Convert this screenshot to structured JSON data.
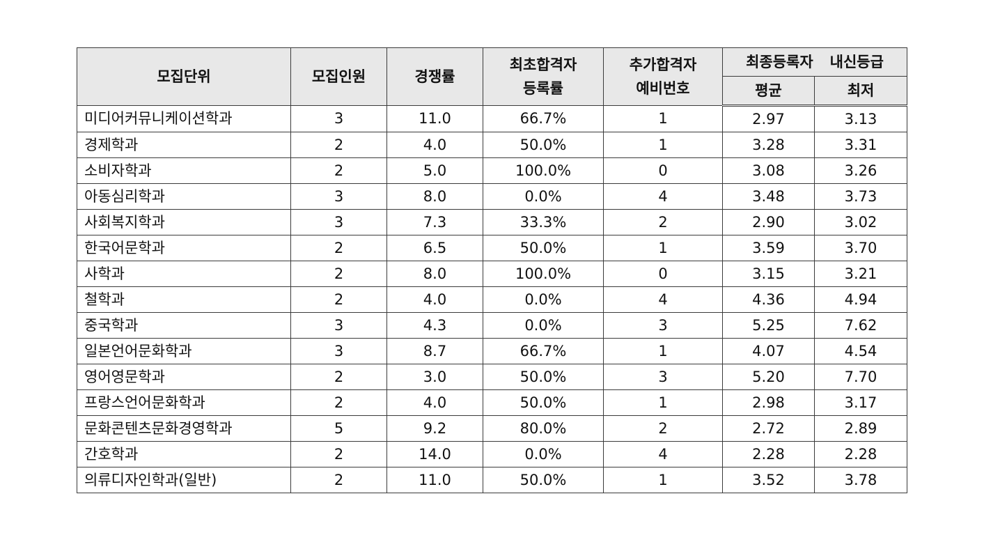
{
  "headers": {
    "unit": "모집단위",
    "quota": "모집인원",
    "competition": "경쟁률",
    "first_reg_line1": "최초합격자",
    "first_reg_line2": "등록률",
    "waitlist_line1": "추가합격자",
    "waitlist_line2": "예비번호",
    "grade_group_part1": "최종등록자",
    "grade_group_part2": "내신등급",
    "grade_avg": "평균",
    "grade_min": "최저"
  },
  "rows": [
    {
      "unit": "미디어커뮤니케이션학과",
      "quota": "3",
      "competition": "11.0",
      "first_reg": "66.7%",
      "waitlist": "1",
      "avg": "2.97",
      "min": "3.13"
    },
    {
      "unit": "경제학과",
      "quota": "2",
      "competition": "4.0",
      "first_reg": "50.0%",
      "waitlist": "1",
      "avg": "3.28",
      "min": "3.31"
    },
    {
      "unit": "소비자학과",
      "quota": "2",
      "competition": "5.0",
      "first_reg": "100.0%",
      "waitlist": "0",
      "avg": "3.08",
      "min": "3.26"
    },
    {
      "unit": "아동심리학과",
      "quota": "3",
      "competition": "8.0",
      "first_reg": "0.0%",
      "waitlist": "4",
      "avg": "3.48",
      "min": "3.73"
    },
    {
      "unit": "사회복지학과",
      "quota": "3",
      "competition": "7.3",
      "first_reg": "33.3%",
      "waitlist": "2",
      "avg": "2.90",
      "min": "3.02"
    },
    {
      "unit": "한국어문학과",
      "quota": "2",
      "competition": "6.5",
      "first_reg": "50.0%",
      "waitlist": "1",
      "avg": "3.59",
      "min": "3.70"
    },
    {
      "unit": "사학과",
      "quota": "2",
      "competition": "8.0",
      "first_reg": "100.0%",
      "waitlist": "0",
      "avg": "3.15",
      "min": "3.21"
    },
    {
      "unit": "철학과",
      "quota": "2",
      "competition": "4.0",
      "first_reg": "0.0%",
      "waitlist": "4",
      "avg": "4.36",
      "min": "4.94"
    },
    {
      "unit": "중국학과",
      "quota": "3",
      "competition": "4.3",
      "first_reg": "0.0%",
      "waitlist": "3",
      "avg": "5.25",
      "min": "7.62"
    },
    {
      "unit": "일본언어문화학과",
      "quota": "3",
      "competition": "8.7",
      "first_reg": "66.7%",
      "waitlist": "1",
      "avg": "4.07",
      "min": "4.54"
    },
    {
      "unit": "영어영문학과",
      "quota": "2",
      "competition": "3.0",
      "first_reg": "50.0%",
      "waitlist": "3",
      "avg": "5.20",
      "min": "7.70"
    },
    {
      "unit": "프랑스언어문화학과",
      "quota": "2",
      "competition": "4.0",
      "first_reg": "50.0%",
      "waitlist": "1",
      "avg": "2.98",
      "min": "3.17"
    },
    {
      "unit": "문화콘텐츠문화경영학과",
      "quota": "5",
      "competition": "9.2",
      "first_reg": "80.0%",
      "waitlist": "2",
      "avg": "2.72",
      "min": "2.89"
    },
    {
      "unit": "간호학과",
      "quota": "2",
      "competition": "14.0",
      "first_reg": "0.0%",
      "waitlist": "4",
      "avg": "2.28",
      "min": "2.28"
    },
    {
      "unit": "의류디자인학과(일반)",
      "quota": "2",
      "competition": "11.0",
      "first_reg": "50.0%",
      "waitlist": "1",
      "avg": "3.52",
      "min": "3.78"
    }
  ]
}
